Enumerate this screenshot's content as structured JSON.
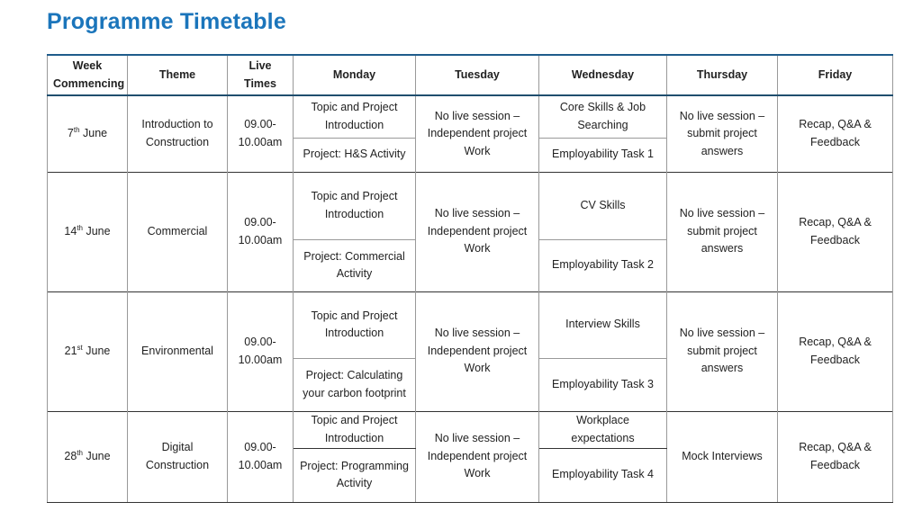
{
  "title": "Programme Timetable",
  "table": {
    "headers": [
      "Week Commencing",
      "Theme",
      "Live Times",
      "Monday",
      "Tuesday",
      "Wednesday",
      "Thursday",
      "Friday"
    ],
    "rows": [
      {
        "week": {
          "day": "7",
          "ordinal": "th",
          "month": "June"
        },
        "theme": "Introduction to Construction",
        "live_times": "09.00-10.00am",
        "monday": [
          "Topic and Project Introduction",
          "Project: H&S Activity"
        ],
        "tuesday": "No live session – Independent project Work",
        "wednesday": [
          "Core Skills & Job Searching",
          "Employability Task 1"
        ],
        "thursday": "No live session – submit project answers",
        "friday": "Recap, Q&A & Feedback"
      },
      {
        "week": {
          "day": "14",
          "ordinal": "th",
          "month": "June"
        },
        "theme": "Commercial",
        "live_times": "09.00-10.00am",
        "monday": [
          "Topic and Project Introduction",
          "Project: Commercial Activity"
        ],
        "tuesday": "No live session – Independent project Work",
        "wednesday": [
          "CV Skills",
          "Employability Task 2"
        ],
        "thursday": "No live session – submit project answers",
        "friday": "Recap, Q&A & Feedback"
      },
      {
        "week": {
          "day": "21",
          "ordinal": "st",
          "month": "June"
        },
        "theme": "Environmental",
        "live_times": "09.00-10.00am",
        "monday": [
          "Topic and Project Introduction",
          "Project: Calculating your carbon footprint"
        ],
        "tuesday": "No live session – Independent project Work",
        "wednesday": [
          "Interview Skills",
          "Employability Task 3"
        ],
        "thursday": "No live session – submit project answers",
        "friday": "Recap, Q&A & Feedback"
      },
      {
        "week": {
          "day": "28",
          "ordinal": "th",
          "month": "June"
        },
        "theme": "Digital Construction",
        "live_times": "09.00-10.00am",
        "monday": [
          "Topic and Project Introduction",
          "Project: Programming Activity"
        ],
        "tuesday": "No live session – Independent project Work",
        "wednesday": [
          "Workplace expectations",
          "Employability Task 4"
        ],
        "thursday": "Mock Interviews",
        "friday": "Recap, Q&A & Feedback"
      }
    ]
  }
}
